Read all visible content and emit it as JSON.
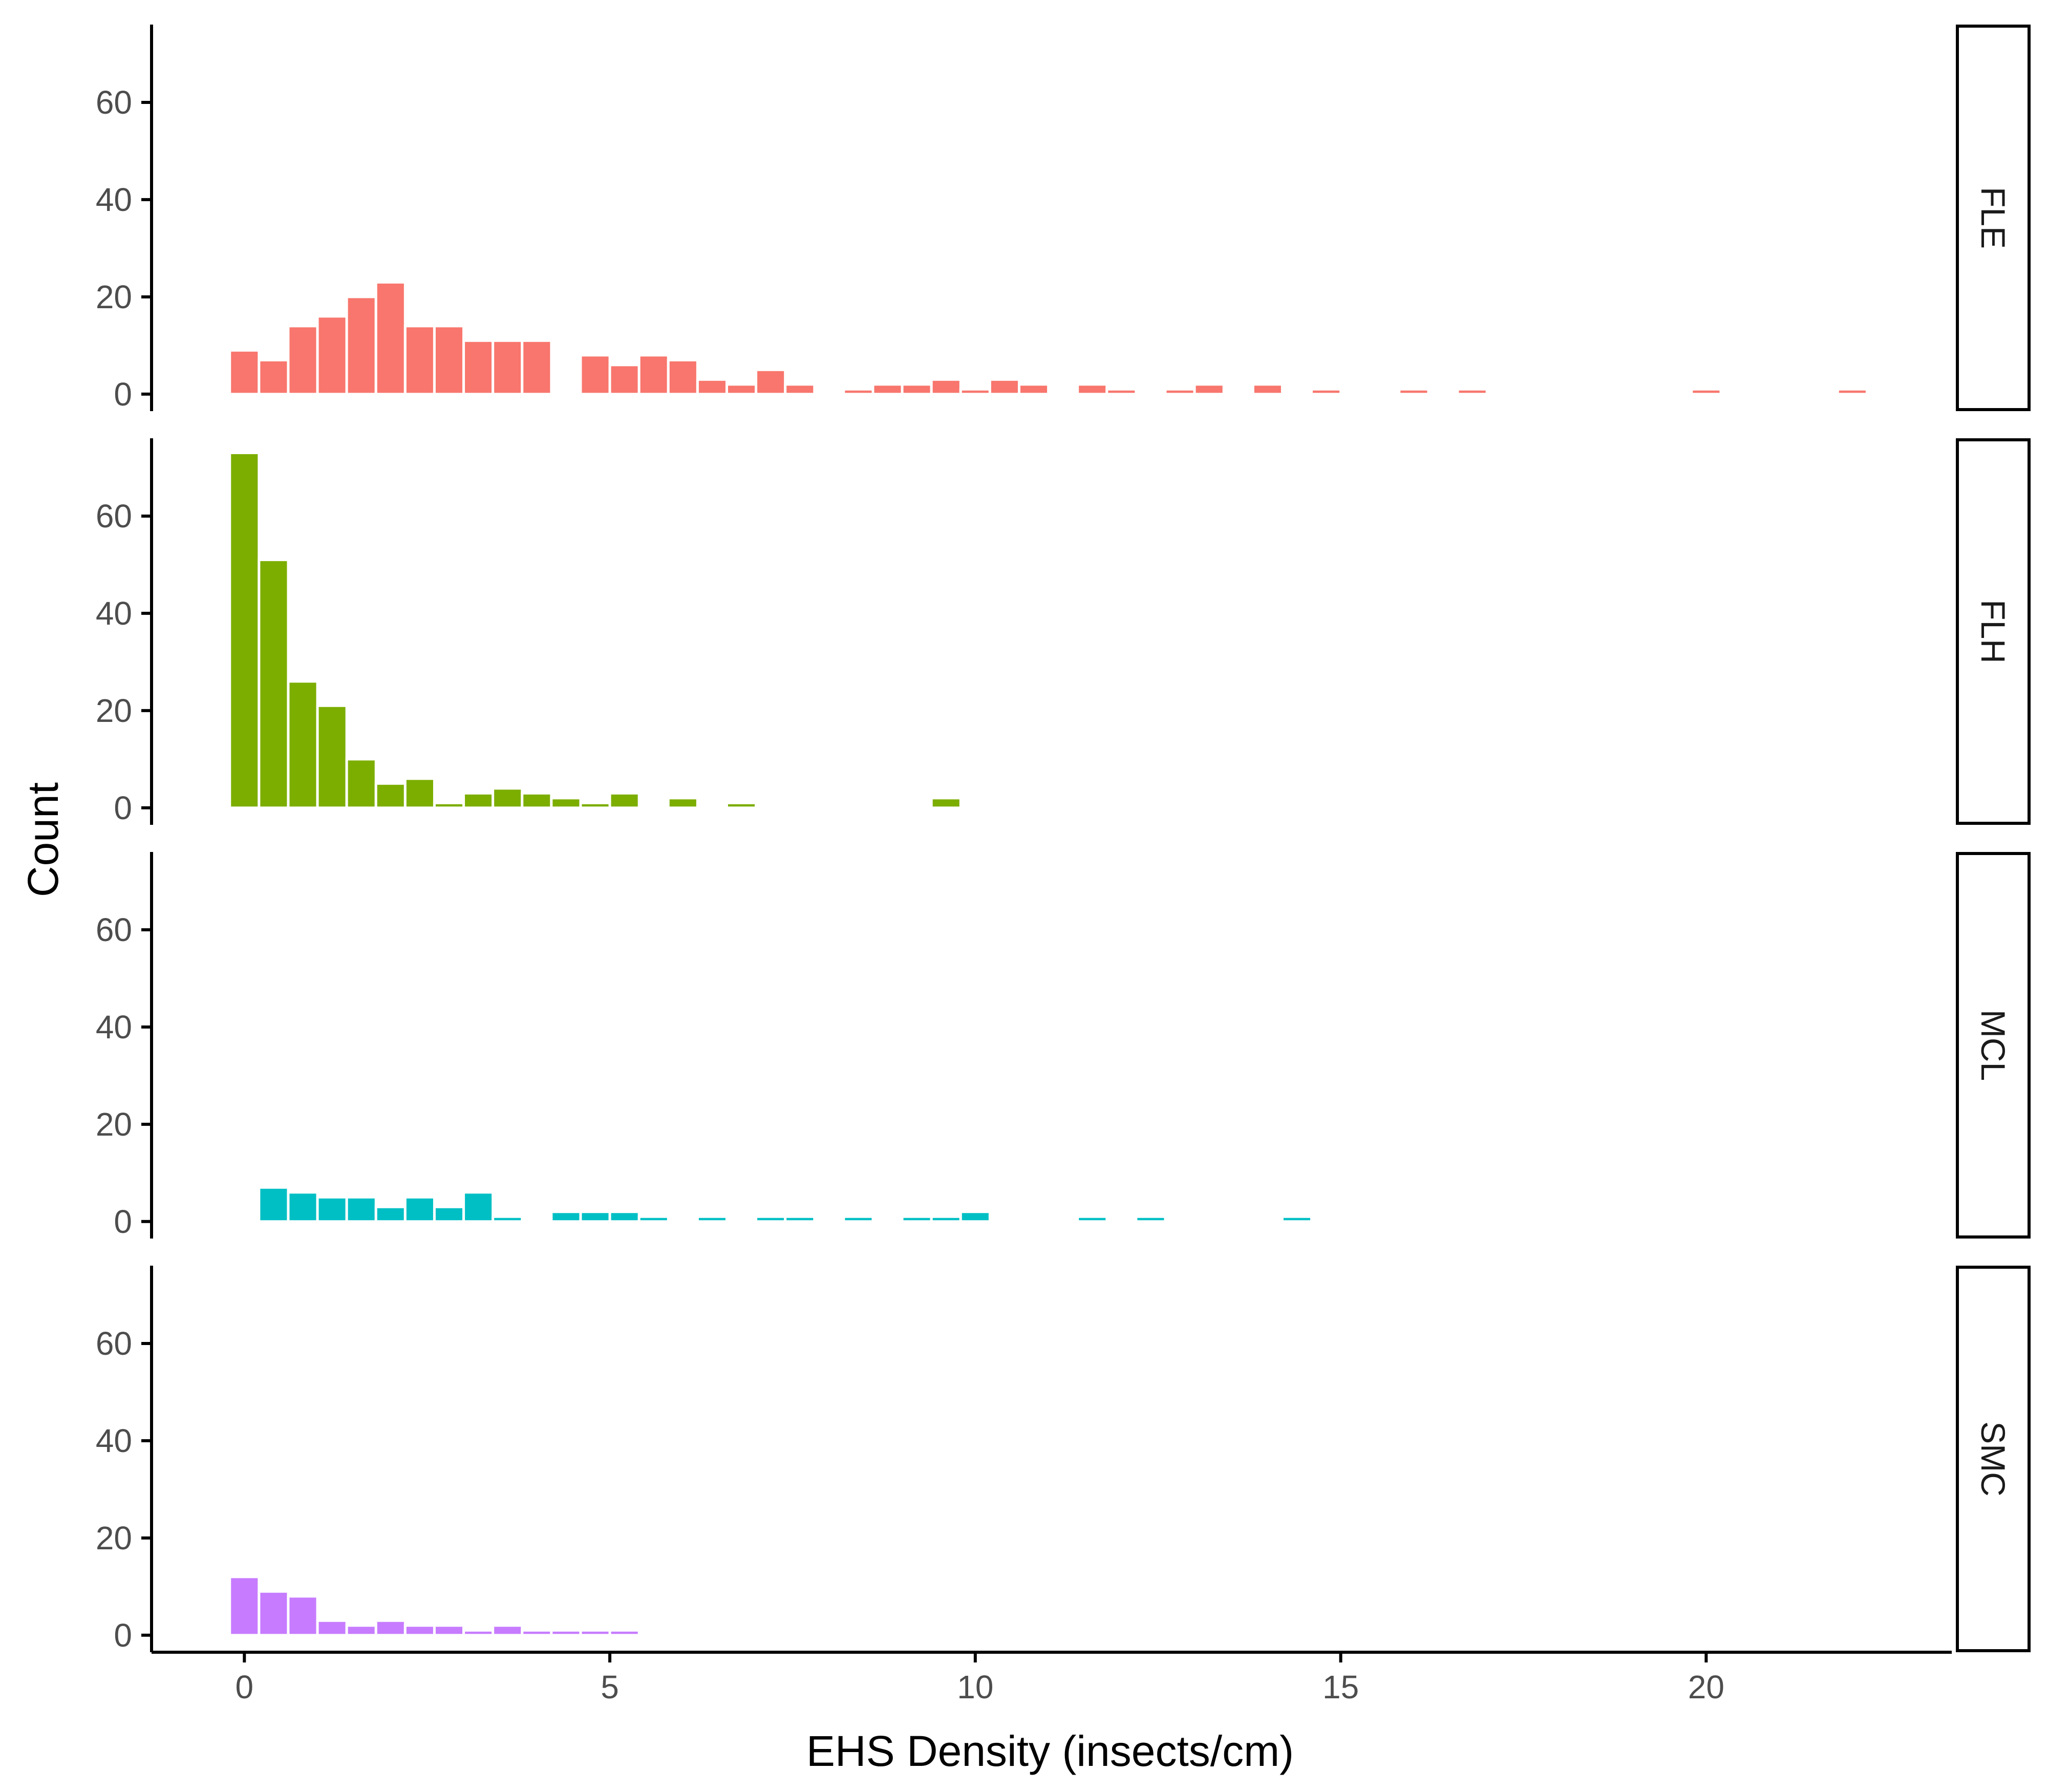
{
  "chart_data": {
    "type": "bar",
    "xlabel": "EHS Density (insects/cm)",
    "ylabel": "Count",
    "xlim": [
      -1.27,
      23.36
    ],
    "ylim": [
      -3.5,
      76
    ],
    "x_ticks": [
      0,
      5,
      10,
      15,
      20
    ],
    "y_ticks": [
      0,
      20,
      40,
      60
    ],
    "bin_width": 0.4,
    "grid": false,
    "legend": "none",
    "facets": [
      {
        "label": "FLE",
        "color": "#F8766D",
        "bins": [
          {
            "x": 0.0,
            "count": 9
          },
          {
            "x": 0.4,
            "count": 7
          },
          {
            "x": 0.8,
            "count": 14
          },
          {
            "x": 1.2,
            "count": 16
          },
          {
            "x": 1.6,
            "count": 20
          },
          {
            "x": 2.0,
            "count": 23
          },
          {
            "x": 2.4,
            "count": 14
          },
          {
            "x": 2.8,
            "count": 14
          },
          {
            "x": 3.2,
            "count": 11
          },
          {
            "x": 3.6,
            "count": 11
          },
          {
            "x": 4.0,
            "count": 11
          },
          {
            "x": 4.8,
            "count": 8
          },
          {
            "x": 5.2,
            "count": 6
          },
          {
            "x": 5.6,
            "count": 8
          },
          {
            "x": 6.0,
            "count": 7
          },
          {
            "x": 6.4,
            "count": 3
          },
          {
            "x": 6.8,
            "count": 2
          },
          {
            "x": 7.2,
            "count": 5
          },
          {
            "x": 7.6,
            "count": 2
          },
          {
            "x": 8.4,
            "count": 1
          },
          {
            "x": 8.8,
            "count": 2
          },
          {
            "x": 9.2,
            "count": 2
          },
          {
            "x": 9.6,
            "count": 3
          },
          {
            "x": 10.0,
            "count": 1
          },
          {
            "x": 10.4,
            "count": 3
          },
          {
            "x": 10.8,
            "count": 2
          },
          {
            "x": 11.6,
            "count": 2
          },
          {
            "x": 12.0,
            "count": 1
          },
          {
            "x": 12.8,
            "count": 1
          },
          {
            "x": 13.2,
            "count": 2
          },
          {
            "x": 14.0,
            "count": 2
          },
          {
            "x": 14.8,
            "count": 1
          },
          {
            "x": 16.0,
            "count": 1
          },
          {
            "x": 16.8,
            "count": 1
          },
          {
            "x": 20.0,
            "count": 1
          },
          {
            "x": 22.0,
            "count": 1
          }
        ]
      },
      {
        "label": "FLH",
        "color": "#7CAE00",
        "bins": [
          {
            "x": 0.0,
            "count": 73
          },
          {
            "x": 0.4,
            "count": 51
          },
          {
            "x": 0.8,
            "count": 26
          },
          {
            "x": 1.2,
            "count": 21
          },
          {
            "x": 1.6,
            "count": 10
          },
          {
            "x": 2.0,
            "count": 5
          },
          {
            "x": 2.4,
            "count": 6
          },
          {
            "x": 2.8,
            "count": 1
          },
          {
            "x": 3.2,
            "count": 3
          },
          {
            "x": 3.6,
            "count": 4
          },
          {
            "x": 4.0,
            "count": 3
          },
          {
            "x": 4.4,
            "count": 2
          },
          {
            "x": 4.8,
            "count": 1
          },
          {
            "x": 5.2,
            "count": 3
          },
          {
            "x": 6.0,
            "count": 2
          },
          {
            "x": 6.8,
            "count": 1
          },
          {
            "x": 9.6,
            "count": 2
          }
        ]
      },
      {
        "label": "MCL",
        "color": "#00BFC4",
        "bins": [
          {
            "x": 0.4,
            "count": 7
          },
          {
            "x": 0.8,
            "count": 6
          },
          {
            "x": 1.2,
            "count": 5
          },
          {
            "x": 1.6,
            "count": 5
          },
          {
            "x": 2.0,
            "count": 3
          },
          {
            "x": 2.4,
            "count": 5
          },
          {
            "x": 2.8,
            "count": 3
          },
          {
            "x": 3.2,
            "count": 6
          },
          {
            "x": 3.6,
            "count": 1
          },
          {
            "x": 4.4,
            "count": 2
          },
          {
            "x": 4.8,
            "count": 2
          },
          {
            "x": 5.2,
            "count": 2
          },
          {
            "x": 5.6,
            "count": 1
          },
          {
            "x": 6.4,
            "count": 1
          },
          {
            "x": 7.2,
            "count": 1
          },
          {
            "x": 7.6,
            "count": 1
          },
          {
            "x": 8.4,
            "count": 1
          },
          {
            "x": 9.2,
            "count": 1
          },
          {
            "x": 9.6,
            "count": 1
          },
          {
            "x": 10.0,
            "count": 2
          },
          {
            "x": 11.6,
            "count": 1
          },
          {
            "x": 12.4,
            "count": 1
          },
          {
            "x": 14.4,
            "count": 1
          }
        ]
      },
      {
        "label": "SMC",
        "color": "#C77CFF",
        "bins": [
          {
            "x": 0.0,
            "count": 12
          },
          {
            "x": 0.4,
            "count": 9
          },
          {
            "x": 0.8,
            "count": 8
          },
          {
            "x": 1.2,
            "count": 3
          },
          {
            "x": 1.6,
            "count": 2
          },
          {
            "x": 2.0,
            "count": 3
          },
          {
            "x": 2.4,
            "count": 2
          },
          {
            "x": 2.8,
            "count": 2
          },
          {
            "x": 3.2,
            "count": 1
          },
          {
            "x": 3.6,
            "count": 2
          },
          {
            "x": 4.0,
            "count": 1
          },
          {
            "x": 4.4,
            "count": 1
          },
          {
            "x": 4.8,
            "count": 1
          },
          {
            "x": 5.2,
            "count": 1
          }
        ]
      }
    ]
  }
}
